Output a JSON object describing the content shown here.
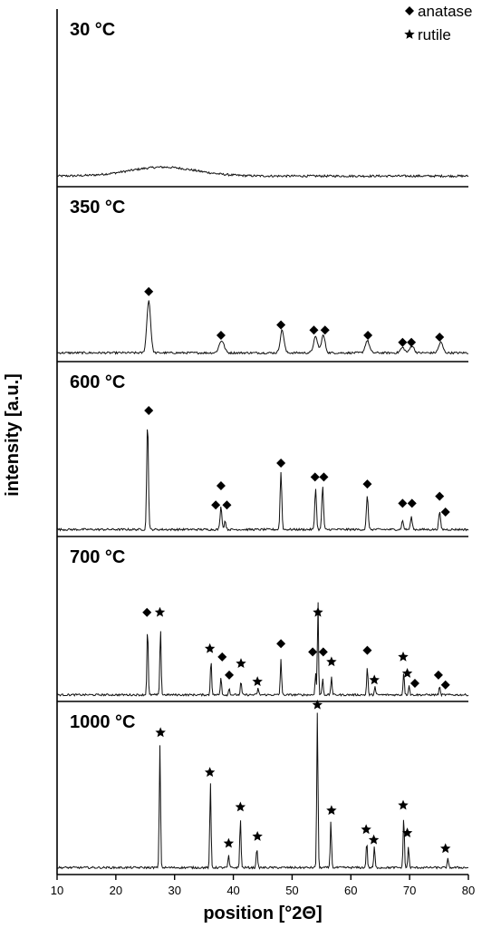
{
  "chart_data": {
    "type": "line",
    "xlabel": "position [°2Θ]",
    "ylabel": "intensity [a.u.]",
    "xlim": [
      10,
      80
    ],
    "xticks": [
      "10",
      "20",
      "30",
      "40",
      "50",
      "60",
      "70",
      "80"
    ],
    "legend": {
      "placement": "top-right",
      "items": [
        {
          "label": "anatase",
          "marker": "diamond"
        },
        {
          "label": "rutile",
          "marker": "star"
        }
      ]
    },
    "panels": [
      {
        "label": "30 °C",
        "baseline": 0.06,
        "hump": {
          "center": 28,
          "width": 8,
          "height": 0.05
        },
        "peaks": [],
        "markers": []
      },
      {
        "label": "350 °C",
        "baseline": 0.05,
        "peaks": [
          {
            "x": 25.6,
            "h": 0.3,
            "w": 0.45
          },
          {
            "x": 38.0,
            "h": 0.07,
            "w": 0.6
          },
          {
            "x": 48.3,
            "h": 0.13,
            "w": 0.45
          },
          {
            "x": 54.0,
            "h": 0.09,
            "w": 0.5
          },
          {
            "x": 55.3,
            "h": 0.1,
            "w": 0.45
          },
          {
            "x": 62.8,
            "h": 0.07,
            "w": 0.5
          },
          {
            "x": 68.8,
            "h": 0.03,
            "w": 0.5
          },
          {
            "x": 70.4,
            "h": 0.04,
            "w": 0.5
          },
          {
            "x": 75.3,
            "h": 0.06,
            "w": 0.5
          }
        ],
        "markers": [
          {
            "x": 25.6,
            "h": 0.4,
            "type": "anatase"
          },
          {
            "x": 37.9,
            "h": 0.15,
            "type": "anatase"
          },
          {
            "x": 48.1,
            "h": 0.21,
            "type": "anatase"
          },
          {
            "x": 53.7,
            "h": 0.18,
            "type": "anatase"
          },
          {
            "x": 55.6,
            "h": 0.18,
            "type": "anatase"
          },
          {
            "x": 62.9,
            "h": 0.15,
            "type": "anatase"
          },
          {
            "x": 68.8,
            "h": 0.11,
            "type": "anatase"
          },
          {
            "x": 70.3,
            "h": 0.11,
            "type": "anatase"
          },
          {
            "x": 75.1,
            "h": 0.14,
            "type": "anatase"
          }
        ]
      },
      {
        "label": "600 °C",
        "baseline": 0.04,
        "peaks": [
          {
            "x": 25.4,
            "h": 0.62,
            "w": 0.2
          },
          {
            "x": 37.9,
            "h": 0.13,
            "w": 0.22
          },
          {
            "x": 38.6,
            "h": 0.05,
            "w": 0.2
          },
          {
            "x": 48.1,
            "h": 0.33,
            "w": 0.2
          },
          {
            "x": 54.0,
            "h": 0.24,
            "w": 0.2
          },
          {
            "x": 55.2,
            "h": 0.25,
            "w": 0.2
          },
          {
            "x": 62.8,
            "h": 0.19,
            "w": 0.22
          },
          {
            "x": 68.8,
            "h": 0.05,
            "w": 0.22
          },
          {
            "x": 70.3,
            "h": 0.07,
            "w": 0.22
          },
          {
            "x": 75.1,
            "h": 0.1,
            "w": 0.22
          }
        ],
        "markers": [
          {
            "x": 25.6,
            "h": 0.72,
            "type": "anatase"
          },
          {
            "x": 37.0,
            "h": 0.18,
            "type": "anatase"
          },
          {
            "x": 37.9,
            "h": 0.29,
            "type": "anatase"
          },
          {
            "x": 38.9,
            "h": 0.18,
            "type": "anatase"
          },
          {
            "x": 48.1,
            "h": 0.42,
            "type": "anatase"
          },
          {
            "x": 53.9,
            "h": 0.34,
            "type": "anatase"
          },
          {
            "x": 55.4,
            "h": 0.34,
            "type": "anatase"
          },
          {
            "x": 62.8,
            "h": 0.3,
            "type": "anatase"
          },
          {
            "x": 68.8,
            "h": 0.19,
            "type": "anatase"
          },
          {
            "x": 70.4,
            "h": 0.19,
            "type": "anatase"
          },
          {
            "x": 75.1,
            "h": 0.23,
            "type": "anatase"
          },
          {
            "x": 76.1,
            "h": 0.14,
            "type": "anatase"
          }
        ]
      },
      {
        "label": "700 °C",
        "baseline": 0.04,
        "peaks": [
          {
            "x": 25.4,
            "h": 0.42,
            "w": 0.15
          },
          {
            "x": 27.6,
            "h": 0.41,
            "w": 0.15
          },
          {
            "x": 36.2,
            "h": 0.22,
            "w": 0.15
          },
          {
            "x": 37.9,
            "h": 0.11,
            "w": 0.15
          },
          {
            "x": 39.3,
            "h": 0.04,
            "w": 0.15
          },
          {
            "x": 41.3,
            "h": 0.08,
            "w": 0.15
          },
          {
            "x": 44.2,
            "h": 0.04,
            "w": 0.15
          },
          {
            "x": 48.1,
            "h": 0.22,
            "w": 0.15
          },
          {
            "x": 54.0,
            "h": 0.13,
            "w": 0.15
          },
          {
            "x": 54.4,
            "h": 0.58,
            "w": 0.13
          },
          {
            "x": 55.2,
            "h": 0.1,
            "w": 0.15
          },
          {
            "x": 56.7,
            "h": 0.11,
            "w": 0.15
          },
          {
            "x": 62.8,
            "h": 0.17,
            "w": 0.15
          },
          {
            "x": 64.1,
            "h": 0.05,
            "w": 0.15
          },
          {
            "x": 69.0,
            "h": 0.14,
            "w": 0.15
          },
          {
            "x": 69.9,
            "h": 0.06,
            "w": 0.15
          },
          {
            "x": 75.1,
            "h": 0.05,
            "w": 0.15
          }
        ],
        "markers": [
          {
            "x": 25.3,
            "h": 0.54,
            "type": "anatase"
          },
          {
            "x": 27.5,
            "h": 0.54,
            "type": "rutile"
          },
          {
            "x": 36.0,
            "h": 0.32,
            "type": "rutile"
          },
          {
            "x": 38.1,
            "h": 0.27,
            "type": "anatase"
          },
          {
            "x": 39.3,
            "h": 0.16,
            "type": "anatase"
          },
          {
            "x": 41.3,
            "h": 0.23,
            "type": "rutile"
          },
          {
            "x": 44.1,
            "h": 0.12,
            "type": "rutile"
          },
          {
            "x": 48.1,
            "h": 0.35,
            "type": "anatase"
          },
          {
            "x": 53.5,
            "h": 0.3,
            "type": "anatase"
          },
          {
            "x": 54.4,
            "h": 0.54,
            "type": "rutile"
          },
          {
            "x": 55.3,
            "h": 0.3,
            "type": "anatase"
          },
          {
            "x": 56.7,
            "h": 0.24,
            "type": "rutile"
          },
          {
            "x": 62.8,
            "h": 0.31,
            "type": "anatase"
          },
          {
            "x": 64.0,
            "h": 0.13,
            "type": "rutile"
          },
          {
            "x": 68.9,
            "h": 0.27,
            "type": "rutile"
          },
          {
            "x": 69.6,
            "h": 0.17,
            "type": "rutile"
          },
          {
            "x": 70.9,
            "h": 0.11,
            "type": "anatase"
          },
          {
            "x": 74.9,
            "h": 0.16,
            "type": "anatase"
          },
          {
            "x": 76.1,
            "h": 0.1,
            "type": "anatase"
          }
        ]
      },
      {
        "label": "1000 °C",
        "baseline": 0.04,
        "peaks": [
          {
            "x": 27.5,
            "h": 0.71,
            "w": 0.15
          },
          {
            "x": 36.1,
            "h": 0.49,
            "w": 0.15
          },
          {
            "x": 39.2,
            "h": 0.07,
            "w": 0.15
          },
          {
            "x": 41.2,
            "h": 0.29,
            "w": 0.15
          },
          {
            "x": 44.0,
            "h": 0.12,
            "w": 0.15
          },
          {
            "x": 54.3,
            "h": 0.9,
            "w": 0.15
          },
          {
            "x": 56.6,
            "h": 0.27,
            "w": 0.15
          },
          {
            "x": 62.7,
            "h": 0.15,
            "w": 0.15
          },
          {
            "x": 64.0,
            "h": 0.12,
            "w": 0.15
          },
          {
            "x": 69.0,
            "h": 0.3,
            "w": 0.15
          },
          {
            "x": 69.8,
            "h": 0.12,
            "w": 0.15
          },
          {
            "x": 76.5,
            "h": 0.05,
            "w": 0.15
          }
        ],
        "markers": [
          {
            "x": 27.6,
            "h": 0.82,
            "type": "rutile"
          },
          {
            "x": 36.0,
            "h": 0.59,
            "type": "rutile"
          },
          {
            "x": 39.2,
            "h": 0.18,
            "type": "rutile"
          },
          {
            "x": 41.2,
            "h": 0.39,
            "type": "rutile"
          },
          {
            "x": 44.1,
            "h": 0.22,
            "type": "rutile"
          },
          {
            "x": 54.3,
            "h": 0.98,
            "type": "rutile"
          },
          {
            "x": 56.7,
            "h": 0.37,
            "type": "rutile"
          },
          {
            "x": 62.6,
            "h": 0.26,
            "type": "rutile"
          },
          {
            "x": 63.9,
            "h": 0.2,
            "type": "rutile"
          },
          {
            "x": 68.9,
            "h": 0.4,
            "type": "rutile"
          },
          {
            "x": 69.6,
            "h": 0.24,
            "type": "rutile"
          },
          {
            "x": 76.1,
            "h": 0.15,
            "type": "rutile"
          }
        ]
      }
    ]
  }
}
